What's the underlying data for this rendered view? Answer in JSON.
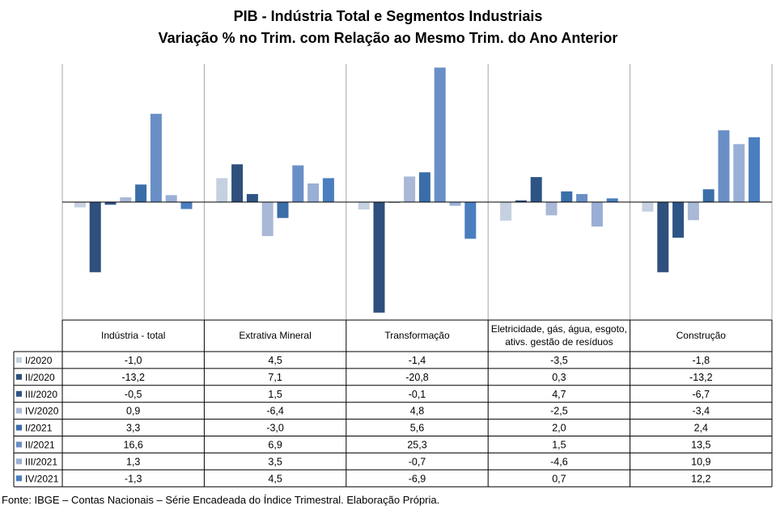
{
  "chart_data": {
    "type": "bar",
    "title": "PIB - Indústria Total e Segmentos Industriais",
    "subtitle": "Variação % no Trim. com Relação ao Mesmo Trim. do Ano Anterior",
    "categories": [
      "Indústria - total",
      "Extrativa Mineral",
      "Transformação",
      "Eletricidade, gás, água, esgoto, ativs. gestão de resíduos",
      "Construção"
    ],
    "category_lines": [
      [
        "Indústria - total"
      ],
      [
        "Extrativa Mineral"
      ],
      [
        "Transformação"
      ],
      [
        "Eletricidade, gás, água, esgoto,",
        "ativs. gestão de resíduos"
      ],
      [
        "Construção"
      ]
    ],
    "series": [
      {
        "name": "I/2020",
        "color": "#c5d0e1",
        "values": [
          -1.0,
          4.5,
          -1.4,
          -3.5,
          -1.8
        ],
        "labels": [
          "-1,0",
          "4,5",
          "-1,4",
          "-3,5",
          "-1,8"
        ]
      },
      {
        "name": "II/2020",
        "color": "#2f4f7c",
        "values": [
          -13.2,
          7.1,
          -20.8,
          0.3,
          -13.2
        ],
        "labels": [
          "-13,2",
          "7,1",
          "-20,8",
          "0,3",
          "-13,2"
        ]
      },
      {
        "name": "III/2020",
        "color": "#2e5486",
        "values": [
          -0.5,
          1.5,
          -0.1,
          4.7,
          -6.7
        ],
        "labels": [
          "-0,5",
          "1,5",
          "-0,1",
          "4,7",
          "-6,7"
        ]
      },
      {
        "name": "IV/2020",
        "color": "#a9b8d6",
        "values": [
          0.9,
          -6.4,
          4.8,
          -2.5,
          -3.4
        ],
        "labels": [
          "0,9",
          "-6,4",
          "4,8",
          "-2,5",
          "-3,4"
        ]
      },
      {
        "name": "I/2021",
        "color": "#3a6ea8",
        "values": [
          3.3,
          -3.0,
          5.6,
          2.0,
          2.4
        ],
        "labels": [
          "3,3",
          "-3,0",
          "5,6",
          "2,0",
          "2,4"
        ]
      },
      {
        "name": "II/2021",
        "color": "#6a8fc7",
        "values": [
          16.6,
          6.9,
          25.3,
          1.5,
          13.5
        ],
        "labels": [
          "16,6",
          "6,9",
          "25,3",
          "1,5",
          "13,5"
        ]
      },
      {
        "name": "III/2021",
        "color": "#9aafd6",
        "values": [
          1.3,
          3.5,
          -0.7,
          -4.6,
          10.9
        ],
        "labels": [
          "1,3",
          "3,5",
          "-0,7",
          "-4,6",
          "10,9"
        ]
      },
      {
        "name": "IV/2021",
        "color": "#4a7ebf",
        "values": [
          -1.3,
          4.5,
          -6.9,
          0.7,
          12.2
        ],
        "labels": [
          "-1,3",
          "4,5",
          "-6,9",
          "0,7",
          "12,2"
        ]
      }
    ],
    "ylim": [
      -21,
      26
    ],
    "grid": false,
    "legend": "data-table"
  },
  "source": "Fonte: IBGE – Contas Nacionais – Série Encadeada do Índice Trimestral. Elaboração Própria."
}
